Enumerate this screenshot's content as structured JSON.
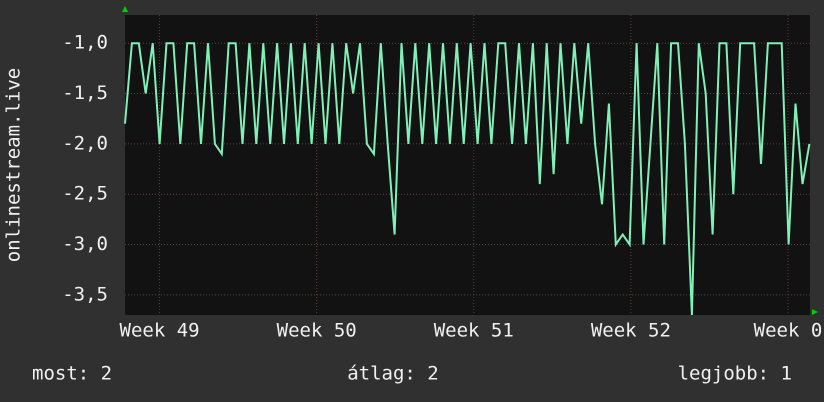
{
  "chart_data": {
    "type": "line",
    "y_label": "onlinestream.live",
    "x": [
      -0.22,
      -0.176,
      -0.132,
      -0.088,
      -0.044,
      0,
      0.044,
      0.088,
      0.132,
      0.176,
      0.22,
      0.264,
      0.308,
      0.352,
      0.396,
      0.44,
      0.484,
      0.528,
      0.572,
      0.616,
      0.66,
      0.704,
      0.748,
      0.792,
      0.836,
      0.88,
      0.924,
      0.968,
      1.012,
      1.056,
      1.1,
      1.144,
      1.188,
      1.232,
      1.276,
      1.32,
      1.364,
      1.408,
      1.452,
      1.496,
      1.54,
      1.584,
      1.628,
      1.672,
      1.716,
      1.76,
      1.804,
      1.848,
      1.892,
      1.936,
      1.98,
      2.024,
      2.068,
      2.112,
      2.156,
      2.2,
      2.244,
      2.288,
      2.332,
      2.376,
      2.42,
      2.464,
      2.508,
      2.552,
      2.596,
      2.64,
      2.684,
      2.728,
      2.772,
      2.816,
      2.86,
      2.904,
      2.948,
      2.992,
      3.036,
      3.08,
      3.124,
      3.168,
      3.212,
      3.256,
      3.3,
      3.344,
      3.388,
      3.432,
      3.476,
      3.52,
      3.564,
      3.608,
      3.652,
      3.696,
      3.74,
      3.784,
      3.828,
      3.872,
      3.916,
      3.96,
      4.004,
      4.048,
      4.092,
      4.136
    ],
    "series": [
      {
        "color": "#80f0b8",
        "values": [
          -1.8,
          -1.0,
          -1.0,
          -1.5,
          -1.0,
          -2.0,
          -1.0,
          -1.0,
          -2.0,
          -1.0,
          -1.0,
          -2.0,
          -1.0,
          -2.0,
          -2.1,
          -1.0,
          -1.0,
          -2.0,
          -1.0,
          -2.0,
          -1.0,
          -2.0,
          -1.0,
          -2.0,
          -1.0,
          -2.0,
          -1.0,
          -2.0,
          -1.0,
          -2.0,
          -1.0,
          -2.0,
          -1.0,
          -1.5,
          -1.0,
          -2.0,
          -2.1,
          -1.0,
          -2.0,
          -2.9,
          -1.0,
          -2.0,
          -1.0,
          -2.0,
          -1.0,
          -2.0,
          -1.0,
          -2.0,
          -1.0,
          -2.0,
          -1.0,
          -2.0,
          -1.0,
          -2.0,
          -1.0,
          -1.0,
          -2.0,
          -1.0,
          -2.0,
          -1.0,
          -2.4,
          -1.0,
          -2.3,
          -1.0,
          -2.0,
          -1.0,
          -1.8,
          -1.0,
          -2.0,
          -2.6,
          -1.6,
          -3.0,
          -2.9,
          -3.0,
          -1.0,
          -3.0,
          -2.0,
          -1.0,
          -3.0,
          -1.0,
          -1.0,
          -2.0,
          -3.7,
          -1.0,
          -1.5,
          -2.9,
          -1.0,
          -1.0,
          -2.5,
          -1.0,
          -1.0,
          -1.0,
          -2.2,
          -1.0,
          -1.0,
          -1.0,
          -3.0,
          -1.6,
          -2.4,
          -2.0
        ]
      }
    ],
    "xlim": [
      -0.22,
      4.14
    ],
    "xticks": [
      {
        "value": 0,
        "label": "Week 49"
      },
      {
        "value": 1,
        "label": "Week 50"
      },
      {
        "value": 2,
        "label": "Week 51"
      },
      {
        "value": 3,
        "label": "Week 52"
      },
      {
        "value": 4,
        "label": "Week 0"
      }
    ],
    "ylim": [
      -3.7,
      -0.72
    ],
    "yticks": [
      {
        "value": -1.0,
        "label": "-1,0"
      },
      {
        "value": -1.5,
        "label": "-1,5"
      },
      {
        "value": -2.0,
        "label": "-2,0"
      },
      {
        "value": -2.5,
        "label": "-2,5"
      },
      {
        "value": -3.0,
        "label": "-3,0"
      },
      {
        "value": -3.5,
        "label": "-3,5"
      }
    ],
    "grid": true,
    "footer": [
      "most: 2",
      "átlag: 2",
      "legjobb: 1"
    ]
  }
}
